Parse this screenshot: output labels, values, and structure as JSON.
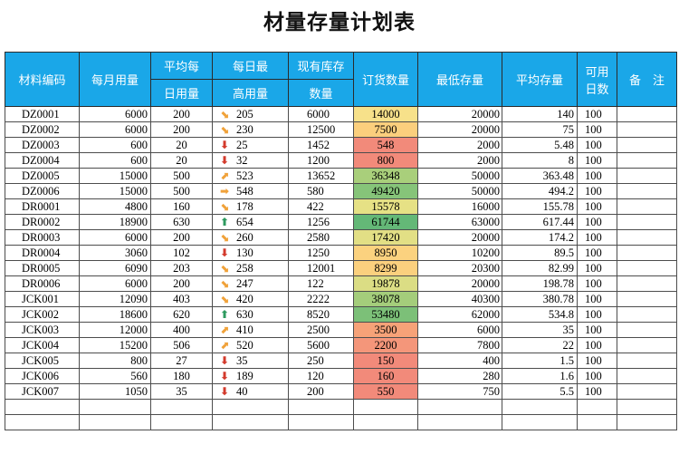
{
  "title": "材量存量计划表",
  "headers": {
    "code": "材料编码",
    "monthly": "每月用量",
    "avg_daily_1": "平均每",
    "avg_daily_2": "日用量",
    "max_daily_1": "每日最",
    "max_daily_2": "高用量",
    "stock_1": "现有库存",
    "stock_2": "数量",
    "order": "订货数量",
    "min_stock": "最低存量",
    "avg_stock": "平均存量",
    "days_1": "可用",
    "days_2": "日数",
    "remarks": "备　注"
  },
  "arrows": {
    "up": "⬆",
    "down": "⬇",
    "right": "➡",
    "diag-up": "⬈",
    "diag-down": "⬊"
  },
  "rows": [
    {
      "code": "DZ0001",
      "monthly": "6000",
      "avg": "200",
      "max": "205",
      "trend": "diag-down",
      "stock": "6000",
      "order": "14000",
      "order_color": "#f7e18a",
      "min": "20000",
      "avgstock": "140",
      "days": "100",
      "remarks": ""
    },
    {
      "code": "DZ0002",
      "monthly": "6000",
      "avg": "200",
      "max": "230",
      "trend": "diag-down",
      "stock": "12500",
      "order": "7500",
      "order_color": "#fbcf7d",
      "min": "20000",
      "avgstock": "75",
      "days": "100",
      "remarks": ""
    },
    {
      "code": "DZ0003",
      "monthly": "600",
      "avg": "20",
      "max": "25",
      "trend": "down",
      "stock": "1452",
      "order": "548",
      "order_color": "#f28a7a",
      "min": "2000",
      "avgstock": "5.48",
      "days": "100",
      "remarks": ""
    },
    {
      "code": "DZ0004",
      "monthly": "600",
      "avg": "20",
      "max": "32",
      "trend": "down",
      "stock": "1200",
      "order": "800",
      "order_color": "#f28a7a",
      "min": "2000",
      "avgstock": "8",
      "days": "100",
      "remarks": ""
    },
    {
      "code": "DZ0005",
      "monthly": "15000",
      "avg": "500",
      "max": "523",
      "trend": "diag-up",
      "stock": "13652",
      "order": "36348",
      "order_color": "#a9cf7b",
      "min": "50000",
      "avgstock": "363.48",
      "days": "100",
      "remarks": ""
    },
    {
      "code": "DZ0006",
      "monthly": "15000",
      "avg": "500",
      "max": "548",
      "trend": "right",
      "stock": "580",
      "order": "49420",
      "order_color": "#86c479",
      "min": "50000",
      "avgstock": "494.2",
      "days": "100",
      "remarks": ""
    },
    {
      "code": "DR0001",
      "monthly": "4800",
      "avg": "160",
      "max": "178",
      "trend": "diag-down",
      "stock": "422",
      "order": "15578",
      "order_color": "#e6e185",
      "min": "16000",
      "avgstock": "155.78",
      "days": "100",
      "remarks": ""
    },
    {
      "code": "DR0002",
      "monthly": "18900",
      "avg": "630",
      "max": "654",
      "trend": "up",
      "stock": "1256",
      "order": "61744",
      "order_color": "#64b877",
      "min": "63000",
      "avgstock": "617.44",
      "days": "100",
      "remarks": ""
    },
    {
      "code": "DR0003",
      "monthly": "6000",
      "avg": "200",
      "max": "260",
      "trend": "diag-down",
      "stock": "2580",
      "order": "17420",
      "order_color": "#e2df85",
      "min": "20000",
      "avgstock": "174.2",
      "days": "100",
      "remarks": ""
    },
    {
      "code": "DR0004",
      "monthly": "3060",
      "avg": "102",
      "max": "130",
      "trend": "down",
      "stock": "1250",
      "order": "8950",
      "order_color": "#fbd27f",
      "min": "10200",
      "avgstock": "89.5",
      "days": "100",
      "remarks": ""
    },
    {
      "code": "DR0005",
      "monthly": "6090",
      "avg": "203",
      "max": "258",
      "trend": "diag-down",
      "stock": "12001",
      "order": "8299",
      "order_color": "#fbd07e",
      "min": "20300",
      "avgstock": "82.99",
      "days": "100",
      "remarks": ""
    },
    {
      "code": "DR0006",
      "monthly": "6000",
      "avg": "200",
      "max": "247",
      "trend": "diag-down",
      "stock": "122",
      "order": "19878",
      "order_color": "#dbdd84",
      "min": "20000",
      "avgstock": "198.78",
      "days": "100",
      "remarks": ""
    },
    {
      "code": "JCK001",
      "monthly": "12090",
      "avg": "403",
      "max": "420",
      "trend": "diag-down",
      "stock": "2222",
      "order": "38078",
      "order_color": "#a4cd7b",
      "min": "40300",
      "avgstock": "380.78",
      "days": "100",
      "remarks": ""
    },
    {
      "code": "JCK002",
      "monthly": "18600",
      "avg": "620",
      "max": "630",
      "trend": "up",
      "stock": "8520",
      "order": "53480",
      "order_color": "#7cc078",
      "min": "62000",
      "avgstock": "534.8",
      "days": "100",
      "remarks": ""
    },
    {
      "code": "JCK003",
      "monthly": "12000",
      "avg": "400",
      "max": "410",
      "trend": "diag-up",
      "stock": "2500",
      "order": "3500",
      "order_color": "#f6a278",
      "min": "6000",
      "avgstock": "35",
      "days": "100",
      "remarks": ""
    },
    {
      "code": "JCK004",
      "monthly": "15200",
      "avg": "506",
      "max": "520",
      "trend": "diag-up",
      "stock": "5600",
      "order": "2200",
      "order_color": "#f4967a",
      "min": "7800",
      "avgstock": "22",
      "days": "100",
      "remarks": ""
    },
    {
      "code": "JCK005",
      "monthly": "800",
      "avg": "27",
      "max": "35",
      "trend": "down",
      "stock": "250",
      "order": "150",
      "order_color": "#f28a7a",
      "min": "400",
      "avgstock": "1.5",
      "days": "100",
      "remarks": ""
    },
    {
      "code": "JCK006",
      "monthly": "560",
      "avg": "180",
      "max": "189",
      "trend": "down",
      "stock": "120",
      "order": "160",
      "order_color": "#f28a7a",
      "min": "280",
      "avgstock": "1.6",
      "days": "100",
      "remarks": ""
    },
    {
      "code": "JCK007",
      "monthly": "1050",
      "avg": "35",
      "max": "40",
      "trend": "down",
      "stock": "200",
      "order": "550",
      "order_color": "#f28a7a",
      "min": "750",
      "avgstock": "5.5",
      "days": "100",
      "remarks": ""
    },
    {
      "code": "",
      "monthly": "",
      "avg": "",
      "max": "",
      "trend": "",
      "stock": "",
      "order": "",
      "order_color": "",
      "min": "",
      "avgstock": "",
      "days": "",
      "remarks": ""
    },
    {
      "code": "",
      "monthly": "",
      "avg": "",
      "max": "",
      "trend": "",
      "stock": "",
      "order": "",
      "order_color": "",
      "min": "",
      "avgstock": "",
      "days": "",
      "remarks": ""
    }
  ]
}
